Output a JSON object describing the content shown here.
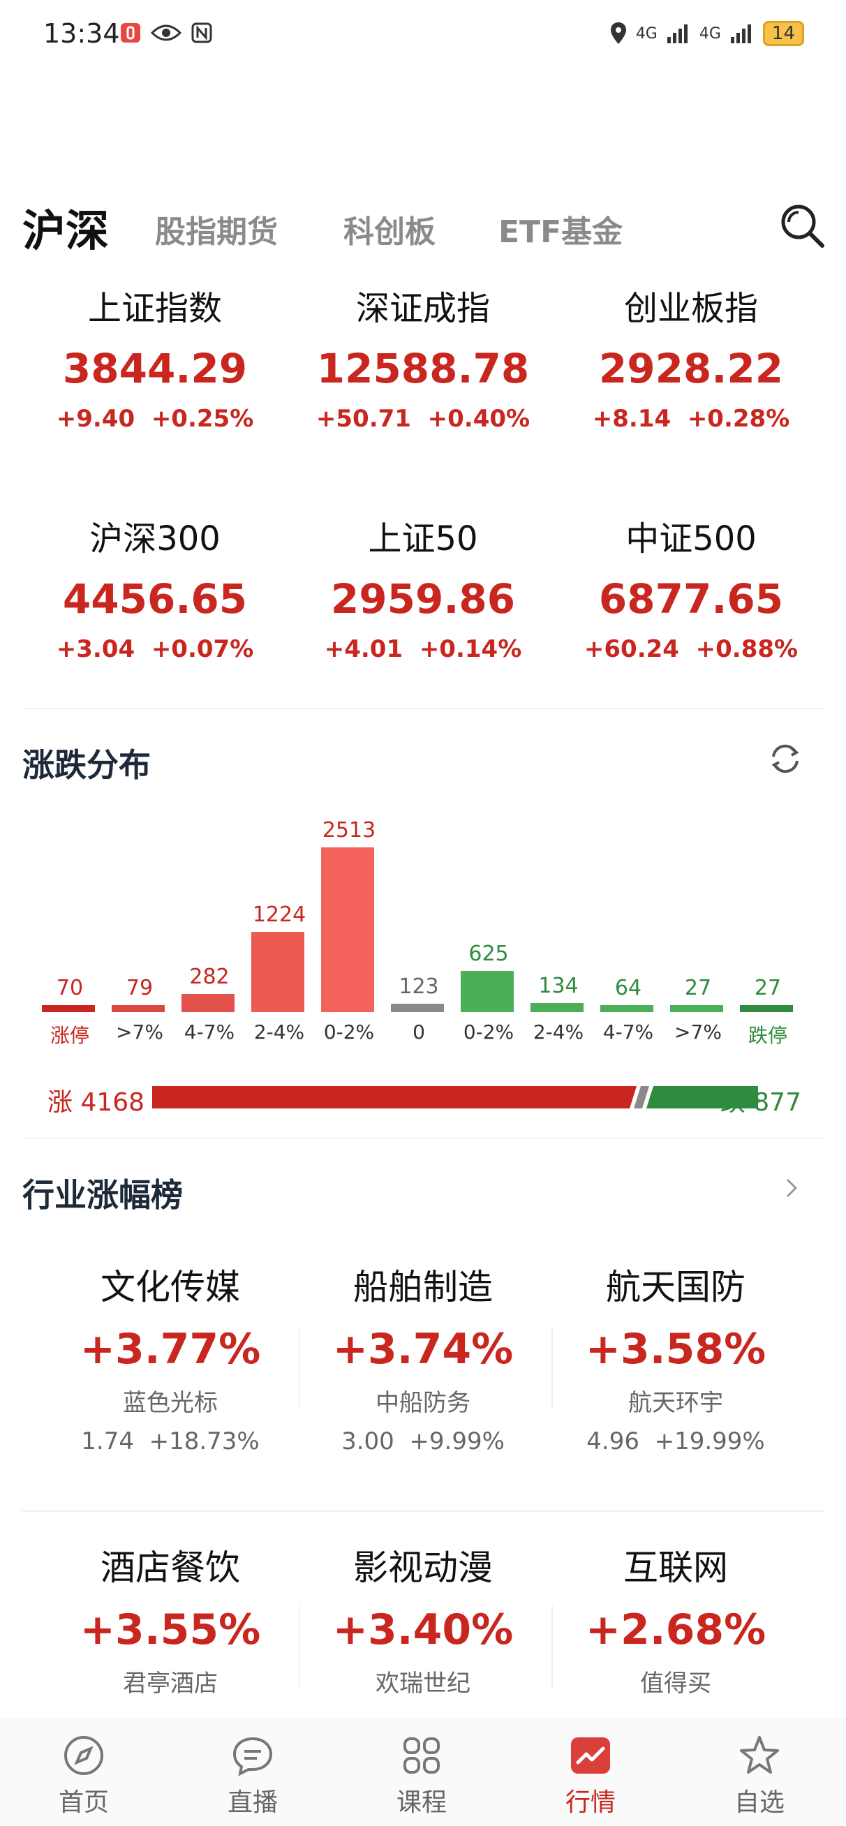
{
  "status_bar": {
    "time": "13:34",
    "battery": "14",
    "signal_1": "4G",
    "signal_2": "4G"
  },
  "top_tabs": {
    "active": "沪深",
    "tabs": [
      "股指期货",
      "科创板",
      "ETF基金"
    ]
  },
  "indices": [
    {
      "name": "上证指数",
      "value": "3844.29",
      "change": "+9.40",
      "pct": "+0.25%"
    },
    {
      "name": "深证成指",
      "value": "12588.78",
      "change": "+50.71",
      "pct": "+0.40%"
    },
    {
      "name": "创业板指",
      "value": "2928.22",
      "change": "+8.14",
      "pct": "+0.28%"
    },
    {
      "name": "沪深300",
      "value": "4456.65",
      "change": "+3.04",
      "pct": "+0.07%"
    },
    {
      "name": "上证50",
      "value": "2959.86",
      "change": "+4.01",
      "pct": "+0.14%"
    },
    {
      "name": "中证500",
      "value": "6877.65",
      "change": "+60.24",
      "pct": "+0.88%"
    }
  ],
  "distribution": {
    "title": "涨跌分布",
    "up_label": "涨 4168",
    "down_label": "跌 877",
    "up_count": 4168,
    "down_count": 877
  },
  "chart_data": {
    "type": "bar",
    "title": "涨跌分布",
    "categories": [
      "涨停",
      ">7%",
      "4-7%",
      "2-4%",
      "0-2%",
      "0",
      "0-2%",
      "2-4%",
      "4-7%",
      ">7%",
      "跌停"
    ],
    "values": [
      70,
      79,
      282,
      1224,
      2513,
      123,
      625,
      134,
      64,
      27,
      27
    ],
    "colors": [
      "#c8261f",
      "#d9473f",
      "#e2524b",
      "#ec5a52",
      "#f3625b",
      "#8a8a8a",
      "#4caf57",
      "#4caf57",
      "#4caf57",
      "#4caf57",
      "#2f8b3f"
    ],
    "label_colors": [
      "#c8261f",
      "#333333",
      "#333333",
      "#333333",
      "#333333",
      "#333333",
      "#333333",
      "#333333",
      "#333333",
      "#333333",
      "#2f8b3f"
    ],
    "value_colors": [
      "#c8261f",
      "#c8261f",
      "#c8261f",
      "#c8261f",
      "#c8261f",
      "#666666",
      "#2f8b3f",
      "#2f8b3f",
      "#2f8b3f",
      "#2f8b3f",
      "#2f8b3f"
    ],
    "ylim": [
      0,
      2513
    ]
  },
  "industry": {
    "title": "行业涨幅榜",
    "items": [
      {
        "name": "文化传媒",
        "pct": "+3.77%",
        "stock": "蓝色光标",
        "price": "1.74",
        "stock_pct": "+18.73%"
      },
      {
        "name": "船舶制造",
        "pct": "+3.74%",
        "stock": "中船防务",
        "price": "3.00",
        "stock_pct": "+9.99%"
      },
      {
        "name": "航天国防",
        "pct": "+3.58%",
        "stock": "航天环宇",
        "price": "4.96",
        "stock_pct": "+19.99%"
      },
      {
        "name": "酒店餐饮",
        "pct": "+3.55%",
        "stock": "君亭酒店"
      },
      {
        "name": "影视动漫",
        "pct": "+3.40%",
        "stock": "欢瑞世纪"
      },
      {
        "name": "互联网",
        "pct": "+2.68%",
        "stock": "值得买"
      }
    ]
  },
  "bottom_nav": [
    {
      "label": "首页",
      "icon": "compass-icon"
    },
    {
      "label": "直播",
      "icon": "chat-icon"
    },
    {
      "label": "课程",
      "icon": "grid-icon"
    },
    {
      "label": "行情",
      "icon": "trend-icon",
      "active": true
    },
    {
      "label": "自选",
      "icon": "star-icon"
    }
  ],
  "colors": {
    "up": "#c8261f",
    "down": "#2f8b3f",
    "flat": "#8a8a8a"
  }
}
